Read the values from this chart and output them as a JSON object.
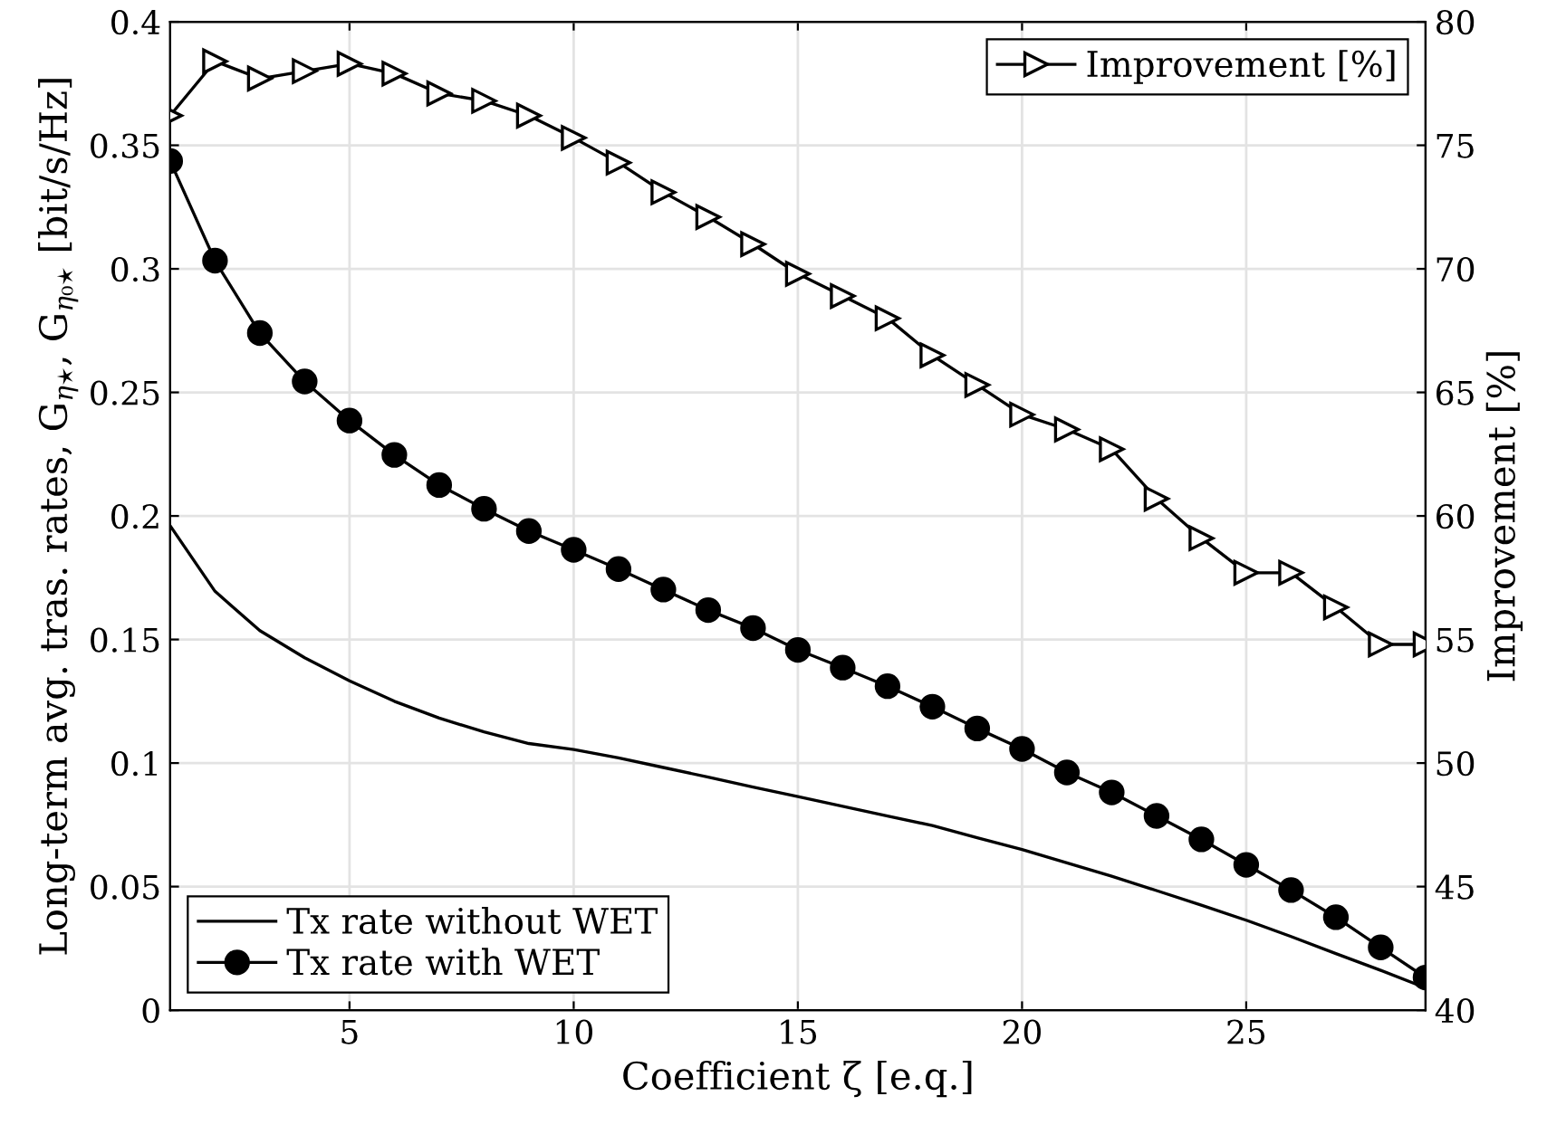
{
  "chart_data": {
    "type": "line",
    "xlabel": "Coefficient ζ [e.q.]",
    "ylabel": "Long-term avg. tras. rates, G$_{η⋆}$, G$_{η₀⋆}$ [bit/s/Hz]",
    "y2label": "Improvement [%]",
    "x": [
      1,
      2,
      3,
      4,
      5,
      6,
      7,
      8,
      9,
      10,
      11,
      12,
      13,
      14,
      15,
      16,
      17,
      18,
      19,
      20,
      21,
      22,
      23,
      24,
      25,
      26,
      27,
      28,
      29
    ],
    "series": [
      {
        "name": "Tx rate without WET",
        "color": "#000000",
        "marker": "none",
        "values": [
          0.196,
          0.1695,
          0.1536,
          0.1426,
          0.1333,
          0.125,
          0.1182,
          0.1126,
          0.1079,
          0.1055,
          0.1021,
          0.0982,
          0.0943,
          0.0903,
          0.0864,
          0.0825,
          0.0786,
          0.0747,
          0.0698,
          0.065,
          0.0596,
          0.0542,
          0.0484,
          0.0425,
          0.0364,
          0.0298,
          0.0229,
          0.0161,
          0.009
        ]
      },
      {
        "name": "Tx rate with WET",
        "color": "#000000",
        "marker": "circle",
        "values": [
          0.3436,
          0.3033,
          0.274,
          0.2544,
          0.2386,
          0.2247,
          0.2125,
          0.2029,
          0.1939,
          0.1863,
          0.1785,
          0.1702,
          0.1619,
          0.1546,
          0.1458,
          0.1386,
          0.1311,
          0.1228,
          0.114,
          0.1057,
          0.0962,
          0.0881,
          0.0786,
          0.0691,
          0.0588,
          0.0486,
          0.0376,
          0.0254,
          0.0132
        ]
      },
      {
        "name": "Improvement [%]",
        "color": "#000000",
        "marker": "triangle",
        "axis": "y2",
        "values": [
          76.2,
          78.4,
          77.7,
          78.0,
          78.3,
          77.9,
          77.1,
          76.8,
          76.2,
          75.3,
          74.3,
          73.1,
          72.1,
          71.0,
          69.8,
          68.9,
          68.0,
          66.5,
          65.3,
          64.1,
          63.5,
          62.7,
          60.7,
          59.1,
          57.7,
          57.7,
          56.3,
          54.8,
          54.8
        ]
      }
    ],
    "xlim": [
      1,
      29
    ],
    "xticks": [
      5,
      10,
      15,
      20,
      25
    ],
    "ylim": [
      0,
      0.4
    ],
    "yticks": [
      0,
      0.05,
      0.1,
      0.15,
      0.2,
      0.25,
      0.3,
      0.35,
      0.4
    ],
    "y2lim": [
      40,
      80
    ],
    "y2ticks": [
      40,
      45,
      50,
      55,
      60,
      65,
      70,
      75,
      80
    ],
    "grid": true,
    "legend": [
      "bottom left",
      "top right"
    ]
  }
}
